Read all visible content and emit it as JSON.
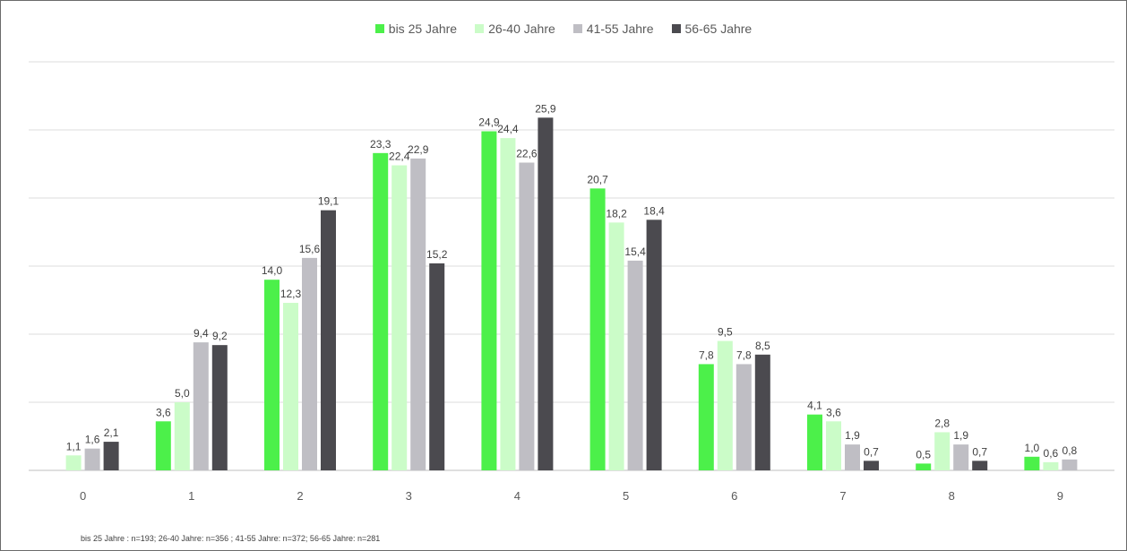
{
  "chart_data": {
    "type": "bar",
    "categories": [
      "0",
      "1",
      "2",
      "3",
      "4",
      "5",
      "6",
      "7",
      "8",
      "9"
    ],
    "series": [
      {
        "name": "bis 25 Jahre",
        "color": "#4cf04a",
        "values": [
          null,
          3.6,
          14.0,
          23.3,
          24.9,
          20.7,
          7.8,
          4.1,
          0.5,
          1.0
        ]
      },
      {
        "name": "26-40 Jahre",
        "color": "#cbfcc8",
        "values": [
          1.1,
          5.0,
          12.3,
          22.4,
          24.4,
          18.2,
          9.5,
          3.6,
          2.8,
          0.6
        ]
      },
      {
        "name": "41-55 Jahre",
        "color": "#bfbec4",
        "values": [
          1.6,
          9.4,
          15.6,
          22.9,
          22.6,
          15.4,
          7.8,
          1.9,
          1.9,
          0.8
        ]
      },
      {
        "name": "56-65 Jahre",
        "color": "#4b4a4f",
        "values": [
          2.1,
          9.2,
          19.1,
          15.2,
          25.9,
          18.4,
          8.5,
          0.7,
          0.7,
          null
        ]
      }
    ],
    "value_labels": [
      [
        "",
        "3,6",
        "14,0",
        "23,3",
        "24,9",
        "20,7",
        "7,8",
        "4,1",
        "0,5",
        "1,0"
      ],
      [
        "1,1",
        "5,0",
        "12,3",
        "22,4",
        "24,4",
        "18,2",
        "9,5",
        "3,6",
        "2,8",
        "0,6"
      ],
      [
        "1,6",
        "9,4",
        "15,6",
        "22,9",
        "22,6",
        "15,4",
        "7,8",
        "1,9",
        "1,9",
        "0,8"
      ],
      [
        "2,1",
        "9,2",
        "19,1",
        "15,2",
        "25,9",
        "18,4",
        "8,5",
        "0,7",
        "0,7",
        ""
      ]
    ],
    "ylim": [
      0,
      30
    ],
    "y_gridlines": [
      0,
      5,
      10,
      15,
      20,
      25,
      30
    ],
    "grid": true,
    "legend_position": "top-center"
  },
  "footnote": "bis 25 Jahre : n=193; 26-40 Jahre: n=356 ; 41-55 Jahre: n=372; 56-65 Jahre: n=281"
}
